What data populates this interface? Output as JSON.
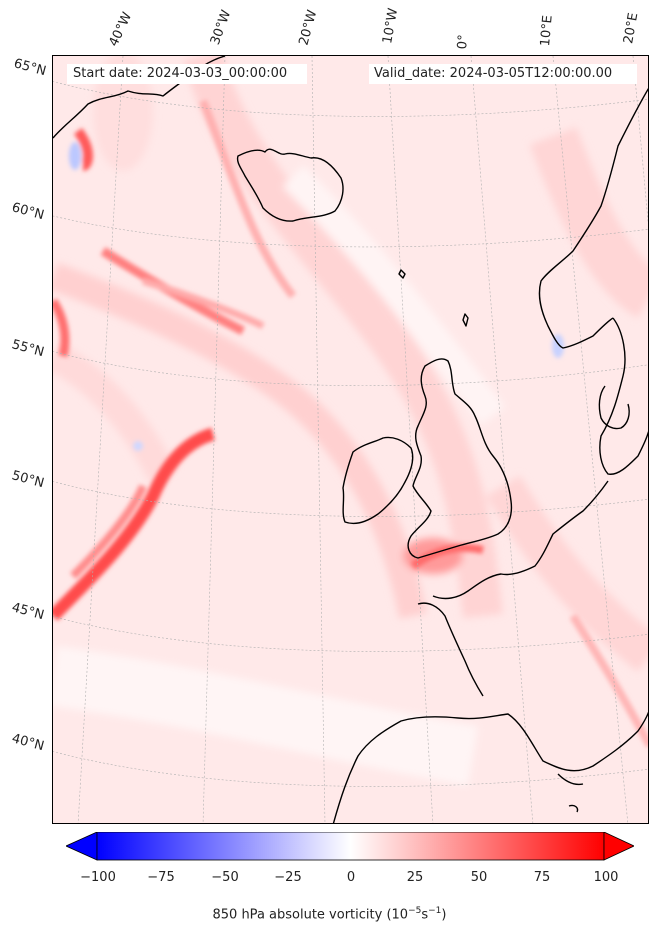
{
  "header": {
    "start_date": "Start date: 2024-03-03_00:00:00",
    "valid_date": "Valid_date: 2024-03-05T12:00:00.00"
  },
  "map": {
    "longitude_labels": [
      "40°W",
      "30°W",
      "20°W",
      "10°W",
      "0°",
      "10°E",
      "20°E"
    ],
    "latitude_labels": [
      "65°N",
      "60°N",
      "55°N",
      "50°N",
      "45°N",
      "40°N"
    ],
    "colors": {
      "min": "#0000ff",
      "mid": "#ffffff",
      "max": "#ff0000",
      "coast": "#000000",
      "grid": "#b0b0b0"
    }
  },
  "colorbar": {
    "ticks": [
      "−100",
      "−75",
      "−50",
      "−25",
      "0",
      "25",
      "50",
      "75",
      "100"
    ],
    "label_prefix": "850 hPa absolute vorticity (10",
    "label_exp1": "−5",
    "label_mid": "s",
    "label_exp2": "−1",
    "label_suffix": ")"
  }
}
